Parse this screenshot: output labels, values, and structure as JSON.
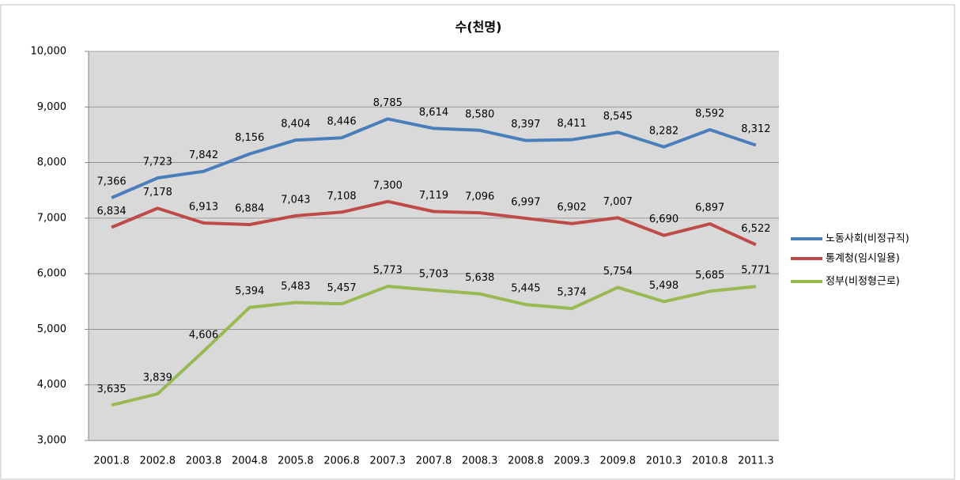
{
  "chart_data": {
    "type": "line",
    "title": "수(천명)",
    "categories": [
      "2001.8",
      "2002.8",
      "2003.8",
      "2004.8",
      "2005.8",
      "2006.8",
      "2007.3",
      "2007.8",
      "2008.3",
      "2008.8",
      "2009.3",
      "2009.8",
      "2010.3",
      "2010.8",
      "2011.3"
    ],
    "series": [
      {
        "name": "노동사회(비정규직)",
        "color": "#4a7ebb",
        "values": [
          7366,
          7723,
          7842,
          8156,
          8404,
          8446,
          8785,
          8614,
          8580,
          8397,
          8411,
          8545,
          8282,
          8592,
          8312
        ],
        "value_labels": [
          "7,366",
          "7,723",
          "7,842",
          "8,156",
          "8,404",
          "8,446",
          "8,785",
          "8,614",
          "8,580",
          "8,397",
          "8,411",
          "8,545",
          "8,282",
          "8,592",
          "8,312"
        ]
      },
      {
        "name": "통계청(임시일용)",
        "color": "#be4b48",
        "values": [
          6834,
          7178,
          6913,
          6884,
          7043,
          7108,
          7300,
          7119,
          7096,
          6997,
          6902,
          7007,
          6690,
          6897,
          6522
        ],
        "value_labels": [
          "6,834",
          "7,178",
          "6,913",
          "6,884",
          "7,043",
          "7,108",
          "7,300",
          "7,119",
          "7,096",
          "6,997",
          "6,902",
          "7,007",
          "6,690",
          "6,897",
          "6,522"
        ]
      },
      {
        "name": "정부(비정형근로)",
        "color": "#98b954",
        "values": [
          3635,
          3839,
          4606,
          5394,
          5483,
          5457,
          5773,
          5703,
          5638,
          5445,
          5374,
          5754,
          5498,
          5685,
          5771
        ],
        "value_labels": [
          "3,635",
          "3,839",
          "4,606",
          "5,394",
          "5,483",
          "5,457",
          "5,773",
          "5,703",
          "5,638",
          "5,445",
          "5,374",
          "5,754",
          "5,498",
          "5,685",
          "5,771"
        ]
      }
    ],
    "ylim": [
      3000,
      10000
    ],
    "yticks": [
      {
        "value": 3000,
        "label": "3,000"
      },
      {
        "value": 4000,
        "label": "4,000"
      },
      {
        "value": 5000,
        "label": "5,000"
      },
      {
        "value": 6000,
        "label": "6,000"
      },
      {
        "value": 7000,
        "label": "7,000"
      },
      {
        "value": 8000,
        "label": "8,000"
      },
      {
        "value": 9000,
        "label": "9,000"
      },
      {
        "value": 10000,
        "label": "10,000"
      }
    ],
    "grid": true,
    "legend": "right"
  }
}
